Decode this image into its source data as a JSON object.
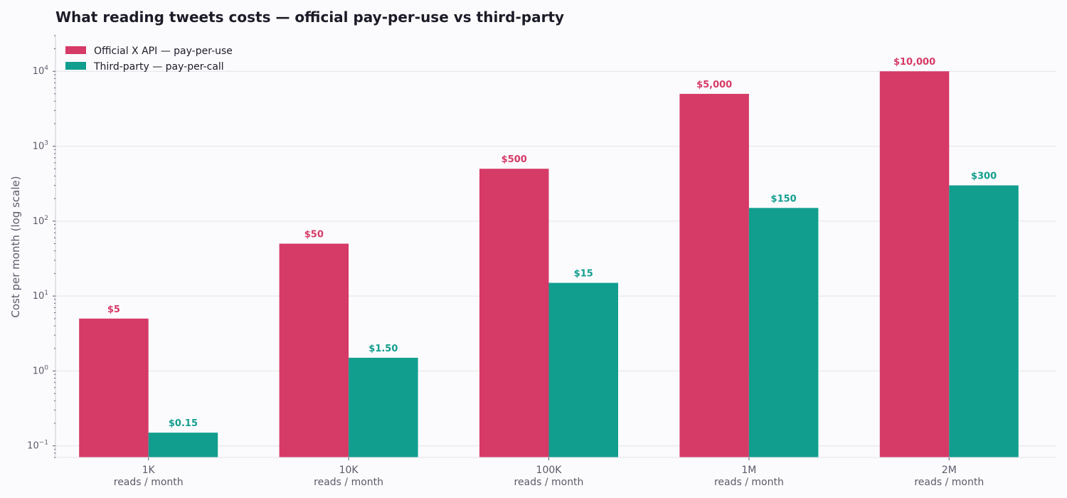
{
  "chart_data": {
    "type": "bar",
    "title": "What reading tweets costs — official pay-per-use vs third-party",
    "ylabel": "Cost per month  (log scale)",
    "yscale": "log",
    "ylim": [
      0.07,
      30000
    ],
    "grid": true,
    "legend_position": "top-left",
    "categories": [
      "1K",
      "10K",
      "100K",
      "1M",
      "2M"
    ],
    "category_sublabel": "reads / month",
    "series": [
      {
        "name": "Official X API — pay-per-use",
        "color": "#d63a66",
        "values": [
          5,
          50,
          500,
          5000,
          10000
        ],
        "labels": [
          "$5",
          "$50",
          "$500",
          "$5,000",
          "$10,000"
        ]
      },
      {
        "name": "Third-party — pay-per-call",
        "color": "#119e8e",
        "values": [
          0.15,
          1.5,
          15,
          150,
          300
        ],
        "labels": [
          "$0.15",
          "$1.50",
          "$15",
          "$150",
          "$300"
        ]
      }
    ]
  }
}
